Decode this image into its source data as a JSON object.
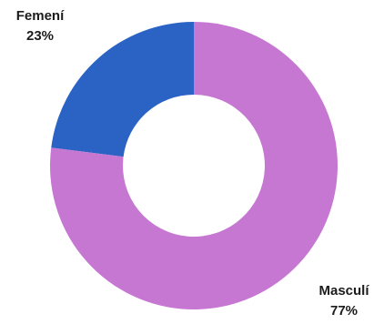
{
  "chart_data": {
    "type": "pie",
    "labels": [
      "Femení",
      "Masculí"
    ],
    "values": [
      23,
      77
    ],
    "value_labels": [
      "23%",
      "77%"
    ],
    "colors": [
      "#2b63c4",
      "#c677d2"
    ],
    "donut": true
  }
}
